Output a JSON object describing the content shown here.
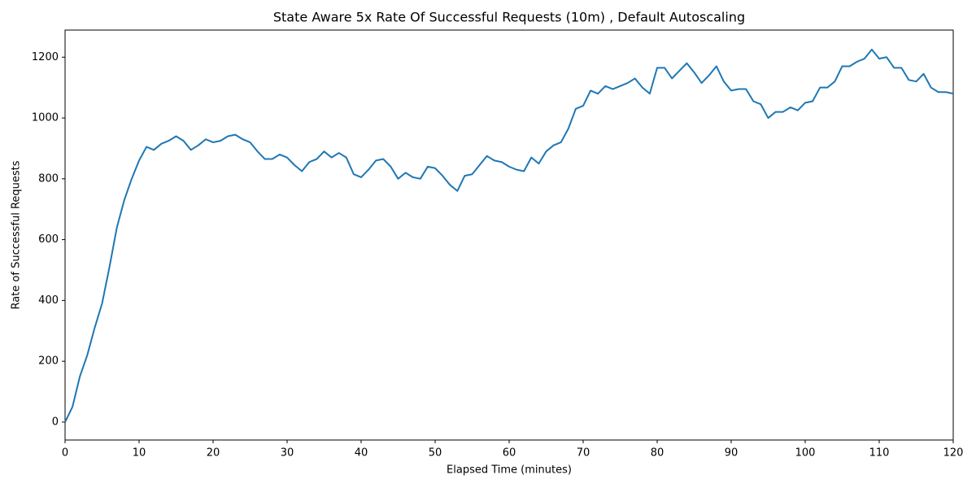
{
  "chart_data": {
    "type": "line",
    "title": "State Aware 5x Rate Of Successful Requests (10m) , Default Autoscaling",
    "x_label": "Elapsed Time (minutes)",
    "y_label": "Rate of Successful Requests",
    "x": [
      0,
      1,
      2,
      3,
      4,
      5,
      6,
      7,
      8,
      9,
      10,
      11,
      12,
      13,
      14,
      15,
      16,
      17,
      18,
      19,
      20,
      21,
      22,
      23,
      24,
      25,
      26,
      27,
      28,
      29,
      30,
      31,
      32,
      33,
      34,
      35,
      36,
      37,
      38,
      39,
      40,
      41,
      42,
      43,
      44,
      45,
      46,
      47,
      48,
      49,
      50,
      51,
      52,
      53,
      54,
      55,
      56,
      57,
      58,
      59,
      60,
      61,
      62,
      63,
      64,
      65,
      66,
      67,
      68,
      69,
      70,
      71,
      72,
      73,
      74,
      75,
      76,
      77,
      78,
      79,
      80,
      81,
      82,
      83,
      84,
      85,
      86,
      87,
      88,
      89,
      90,
      91,
      92,
      93,
      94,
      95,
      96,
      97,
      98,
      99,
      100,
      101,
      102,
      103,
      104,
      105,
      106,
      107,
      108,
      109,
      110,
      111,
      112,
      113,
      114,
      115,
      116,
      117,
      118,
      119,
      120
    ],
    "series": [
      {
        "name": "Rate of Successful Requests",
        "color": "#1f77b4",
        "values": [
          0,
          50,
          150,
          220,
          310,
          390,
          510,
          640,
          730,
          800,
          860,
          905,
          895,
          915,
          925,
          940,
          925,
          895,
          910,
          930,
          920,
          925,
          940,
          945,
          930,
          920,
          890,
          865,
          865,
          880,
          870,
          845,
          825,
          855,
          865,
          890,
          870,
          885,
          870,
          815,
          805,
          830,
          860,
          865,
          840,
          800,
          820,
          805,
          800,
          840,
          835,
          810,
          780,
          760,
          810,
          815,
          845,
          875,
          860,
          855,
          840,
          830,
          825,
          870,
          850,
          890,
          910,
          920,
          965,
          1030,
          1040,
          1090,
          1080,
          1105,
          1095,
          1105,
          1115,
          1130,
          1100,
          1080,
          1165,
          1165,
          1130,
          1155,
          1180,
          1150,
          1115,
          1140,
          1170,
          1120,
          1090,
          1095,
          1095,
          1055,
          1045,
          1000,
          1020,
          1020,
          1035,
          1025,
          1050,
          1055,
          1100,
          1100,
          1120,
          1170,
          1170,
          1185,
          1195,
          1225,
          1195,
          1200,
          1165,
          1165,
          1125,
          1120,
          1145,
          1100,
          1085,
          1085,
          1080
        ]
      }
    ],
    "xlim": [
      0,
      120
    ],
    "xticks": [
      0,
      10,
      20,
      30,
      40,
      50,
      60,
      70,
      80,
      90,
      100,
      110,
      120
    ],
    "ylim": [
      -59,
      1289
    ],
    "yticks": [
      0,
      200,
      400,
      600,
      800,
      1000,
      1200
    ]
  }
}
